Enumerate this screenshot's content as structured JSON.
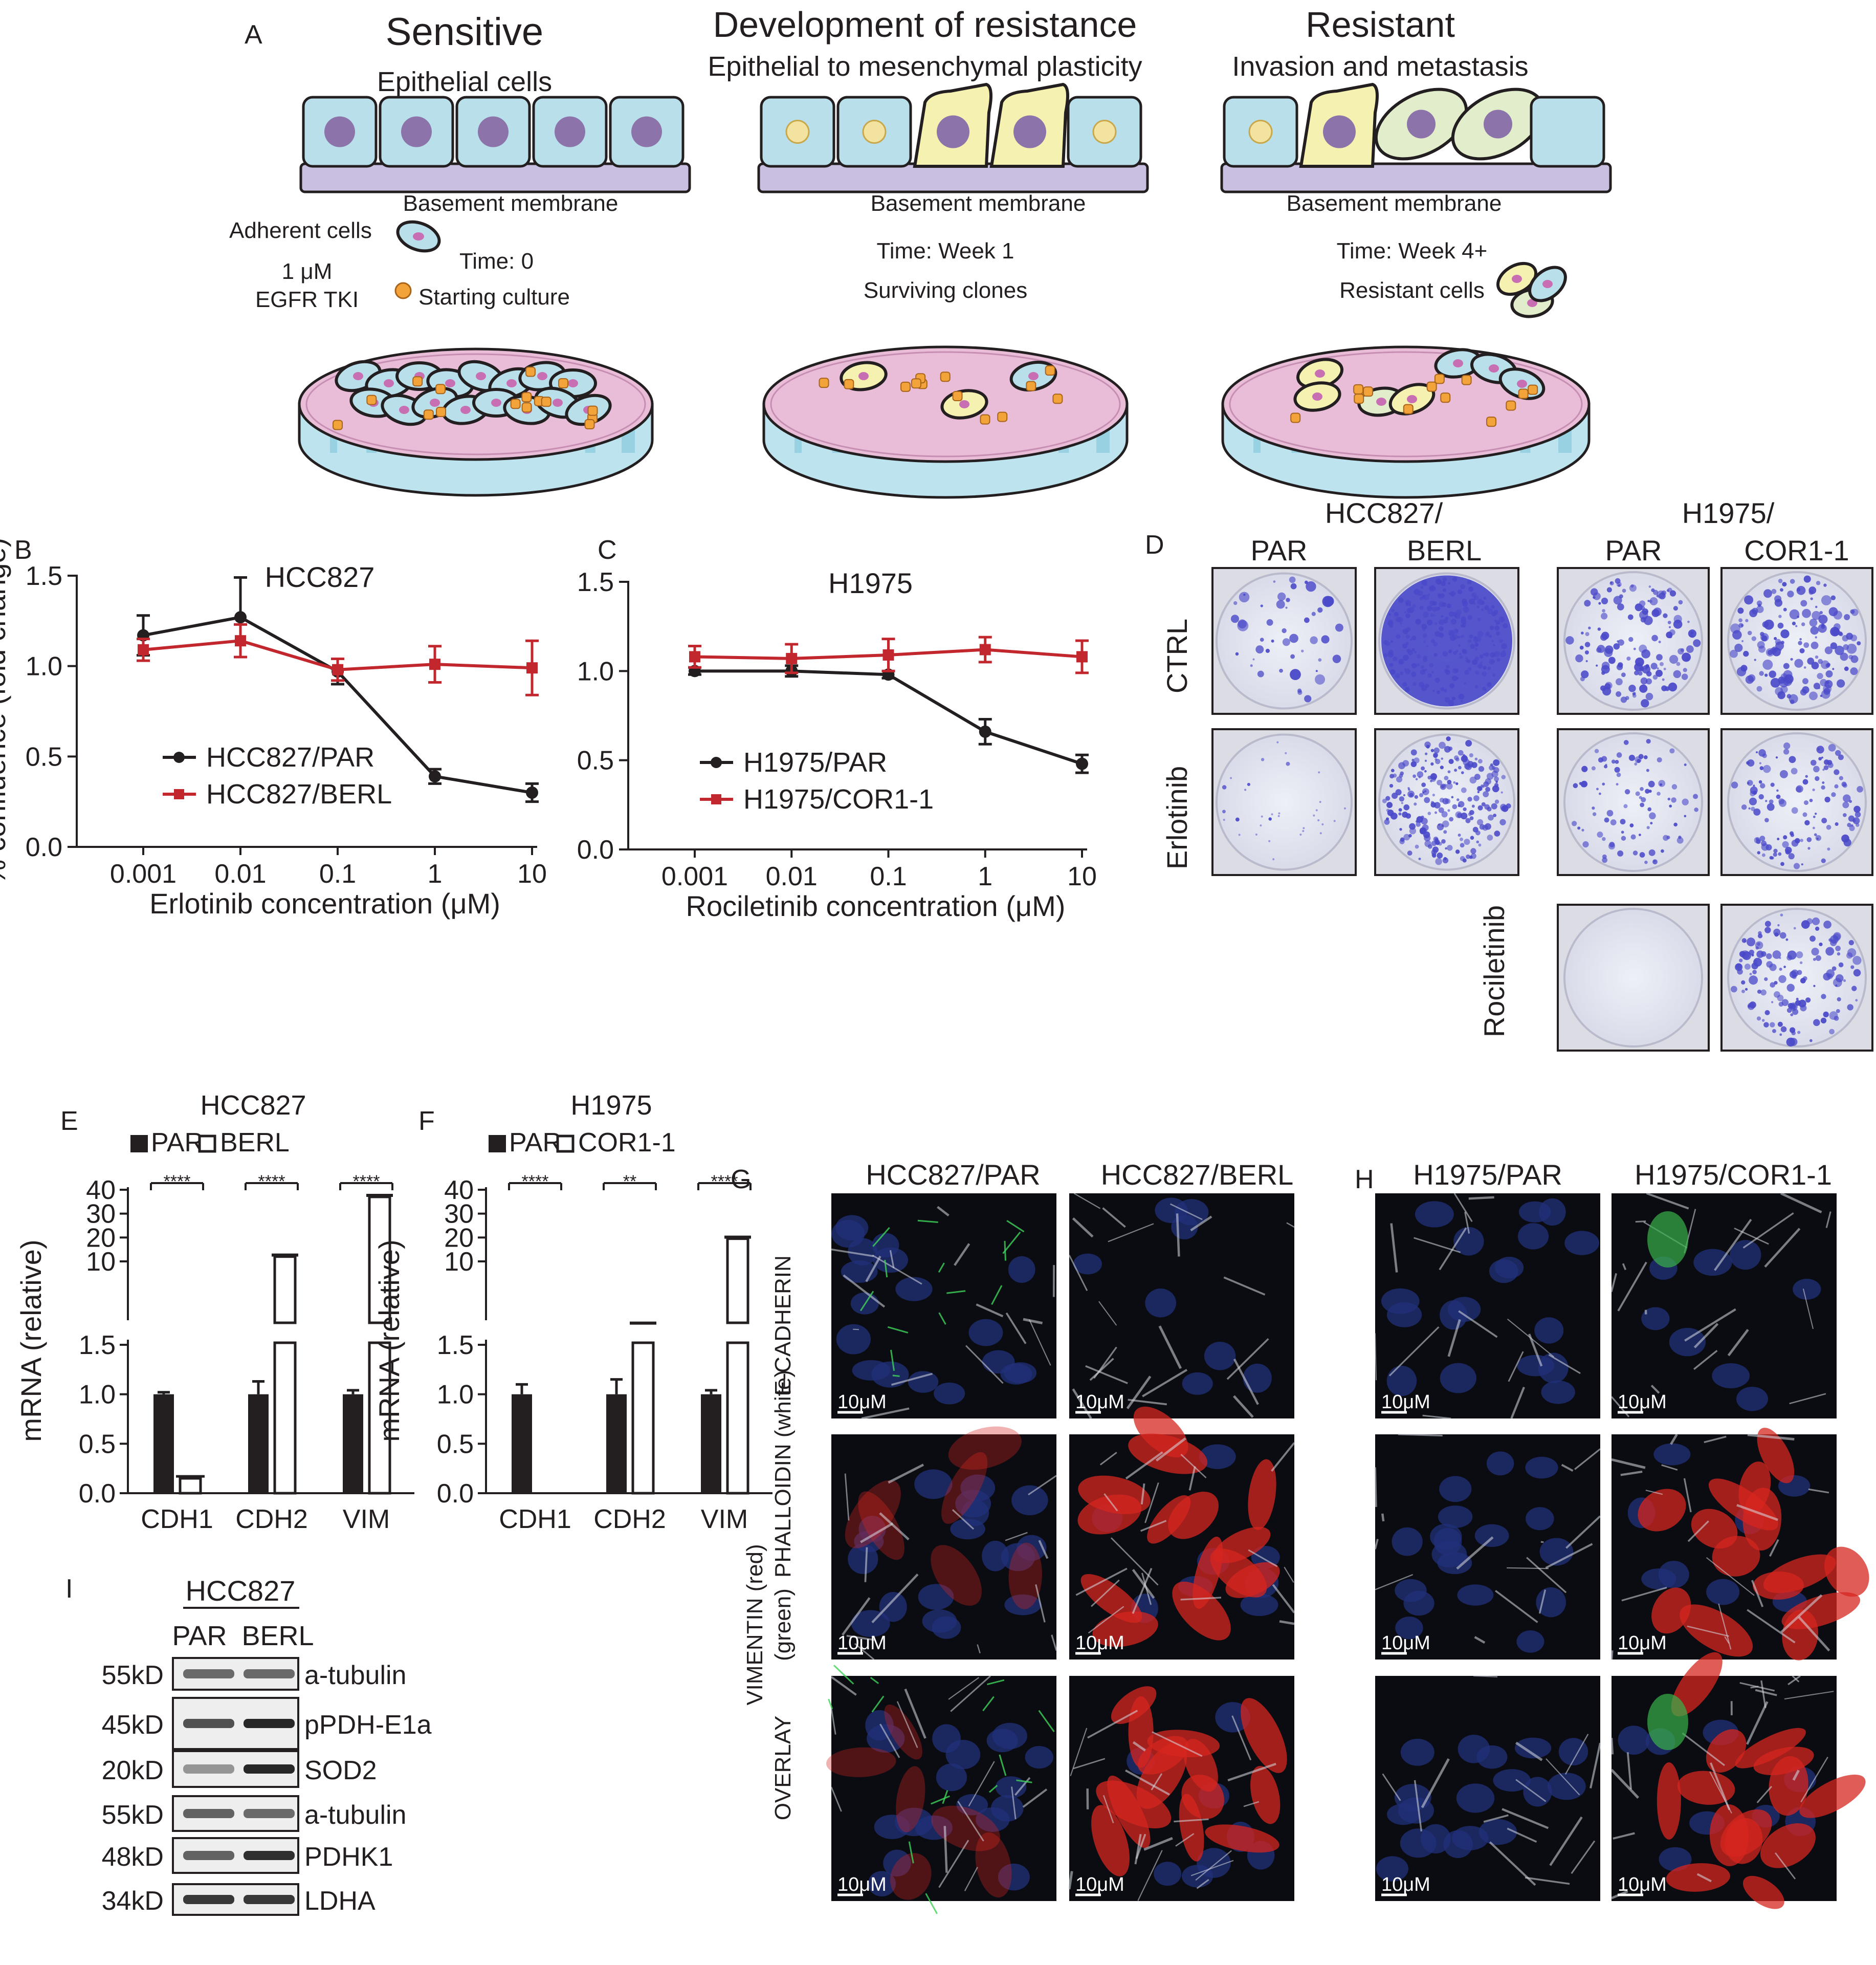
{
  "panel_letters": {
    "A": "A",
    "B": "B",
    "C": "C",
    "D": "D",
    "E": "E",
    "F": "F",
    "G": "G",
    "H": "H",
    "I": "I"
  },
  "panel_a": {
    "stage1": {
      "title": "Sensitive",
      "subtitle": "Epithelial cells",
      "membrane": "Basement membrane"
    },
    "stage2": {
      "title": "Development of resistance",
      "subtitle": "Epithelial to mesenchymal plasticity",
      "membrane": "Basement membrane",
      "time": "Time: Week 1",
      "caption": "Surviving clones"
    },
    "stage3": {
      "title": "Resistant",
      "subtitle": "Invasion and metastasis",
      "membrane": "Basement membrane",
      "time": "Time: Week 4+",
      "caption": "Resistant cells"
    },
    "legend": {
      "adherent": "Adherent cells",
      "time0": "Time: 0",
      "dose": "1 μM",
      "drug": "EGFR TKI",
      "starting": "Starting culture"
    },
    "colors": {
      "epithelial": "#b9dfea",
      "mesenchymal": "#f5f1b0",
      "invasive": "#e2eecb",
      "nucleus": "#8c73a9",
      "membrane": "#c9bfe0",
      "dish": "#e9bcd7",
      "dish_rim": "#bde3ee",
      "dot": "#f2a33a"
    }
  },
  "chart_data": [
    {
      "panel": "B",
      "type": "line",
      "title": "HCC827",
      "xlabel": "Erlotinib concentration (μM)",
      "ylabel": "% confluence (fold change)",
      "x": [
        "0.001",
        "0.01",
        "0.1",
        "1",
        "10"
      ],
      "ylim": [
        0,
        1.5
      ],
      "yticks": [
        "0.0",
        "0.5",
        "1.0",
        "1.5"
      ],
      "series": [
        {
          "name": "HCC827/PAR",
          "color": "#231f20",
          "marker": "circle",
          "values": [
            1.17,
            1.27,
            0.97,
            0.39,
            0.3
          ],
          "errors": [
            0.11,
            0.22,
            0.07,
            0.04,
            0.05
          ]
        },
        {
          "name": "HCC827/BERL",
          "color": "#c1272d",
          "marker": "square",
          "values": [
            1.09,
            1.14,
            0.98,
            1.01,
            0.99
          ],
          "errors": [
            0.06,
            0.09,
            0.06,
            0.1,
            0.15
          ]
        }
      ]
    },
    {
      "panel": "C",
      "type": "line",
      "title": "H1975",
      "xlabel": "Rociletinib concentration (μM)",
      "ylabel": "",
      "x": [
        "0.001",
        "0.01",
        "0.1",
        "1",
        "10"
      ],
      "ylim": [
        0,
        1.5
      ],
      "yticks": [
        "0.0",
        "0.5",
        "1.0",
        "1.5"
      ],
      "series": [
        {
          "name": "H1975/PAR",
          "color": "#231f20",
          "marker": "circle",
          "values": [
            1.0,
            1.0,
            0.98,
            0.66,
            0.48
          ],
          "errors": [
            0.02,
            0.03,
            0.02,
            0.07,
            0.05
          ]
        },
        {
          "name": "H1975/COR1-1",
          "color": "#c1272d",
          "marker": "square",
          "values": [
            1.08,
            1.07,
            1.09,
            1.12,
            1.08
          ],
          "errors": [
            0.06,
            0.08,
            0.09,
            0.07,
            0.09
          ]
        }
      ]
    },
    {
      "panel": "E",
      "type": "bar",
      "title": "HCC827",
      "ylabel": "mRNA (relative)",
      "categories": [
        "CDH1",
        "CDH2",
        "VIM"
      ],
      "yticks_low": [
        "0.0",
        "0.5",
        "1.0",
        "1.5"
      ],
      "yticks_high": [
        "10",
        "20",
        "30",
        "40"
      ],
      "series": [
        {
          "name": "PAR",
          "fill": "solid",
          "values": [
            1.0,
            1.0,
            1.0
          ],
          "errors": [
            0.02,
            0.13,
            0.04
          ]
        },
        {
          "name": "BERL",
          "fill": "open",
          "values": [
            0.15,
            12,
            37
          ],
          "errors": [
            0.02,
            0.3,
            0.5
          ]
        }
      ],
      "significance": [
        "****",
        "****",
        "****"
      ]
    },
    {
      "panel": "F",
      "type": "bar",
      "title": "H1975",
      "ylabel": "mRNA (relative)",
      "categories": [
        "CDH1",
        "CDH2",
        "VIM"
      ],
      "yticks_low": [
        "0.0",
        "0.5",
        "1.0",
        "1.5"
      ],
      "yticks_high": [
        "10",
        "20",
        "30",
        "40"
      ],
      "series": [
        {
          "name": "PAR",
          "fill": "solid",
          "values": [
            1.0,
            1.0,
            1.0
          ],
          "errors": [
            0.1,
            0.15,
            0.04
          ]
        },
        {
          "name": "COR1-1",
          "fill": "open",
          "values": [
            0.0,
            3.5,
            19.5
          ],
          "errors": [
            0,
            0.5,
            0.8
          ]
        }
      ],
      "significance": [
        "****",
        "**",
        "****"
      ]
    }
  ],
  "panel_d": {
    "hcc_header": "HCC827/",
    "hcc_cols": [
      "PAR",
      "BERL"
    ],
    "h_header": "H1975/",
    "h_cols": [
      "PAR",
      "COR1-1"
    ],
    "rows": [
      "CTRL",
      "Erlotinib",
      "Rociletinib"
    ],
    "stain_color": "#4a49c9"
  },
  "panel_g": {
    "cols": [
      "HCC827/PAR",
      "HCC827/BERL"
    ]
  },
  "panel_h": {
    "cols": [
      "H1975/PAR",
      "H1975/COR1-1"
    ]
  },
  "if_rows": {
    "row1": "E-CADHERIN",
    "row2a": "VIMENTIN (red)",
    "row2b": "PHALLOIDIN (white)",
    "row2c": "(green)",
    "row3": "OVERLAY"
  },
  "scale_bar": "10μM",
  "panel_i": {
    "header": "HCC827",
    "lanes": [
      "PAR",
      "BERL"
    ],
    "blots": [
      {
        "kd": "55kD",
        "protein": "a-tubulin",
        "bands": [
          0.55,
          0.55
        ]
      },
      {
        "kd": "45kD",
        "protein": "pPDH-E1a",
        "bands": [
          0.7,
          0.95
        ]
      },
      {
        "kd": "20kD",
        "protein": "SOD2",
        "bands": [
          0.3,
          0.95
        ]
      },
      {
        "kd": "55kD",
        "protein": "a-tubulin",
        "bands": [
          0.6,
          0.55
        ]
      },
      {
        "kd": "48kD",
        "protein": "PDHK1",
        "bands": [
          0.6,
          0.9
        ]
      },
      {
        "kd": "34kD",
        "protein": "LDHA",
        "bands": [
          0.85,
          0.85
        ]
      }
    ]
  }
}
